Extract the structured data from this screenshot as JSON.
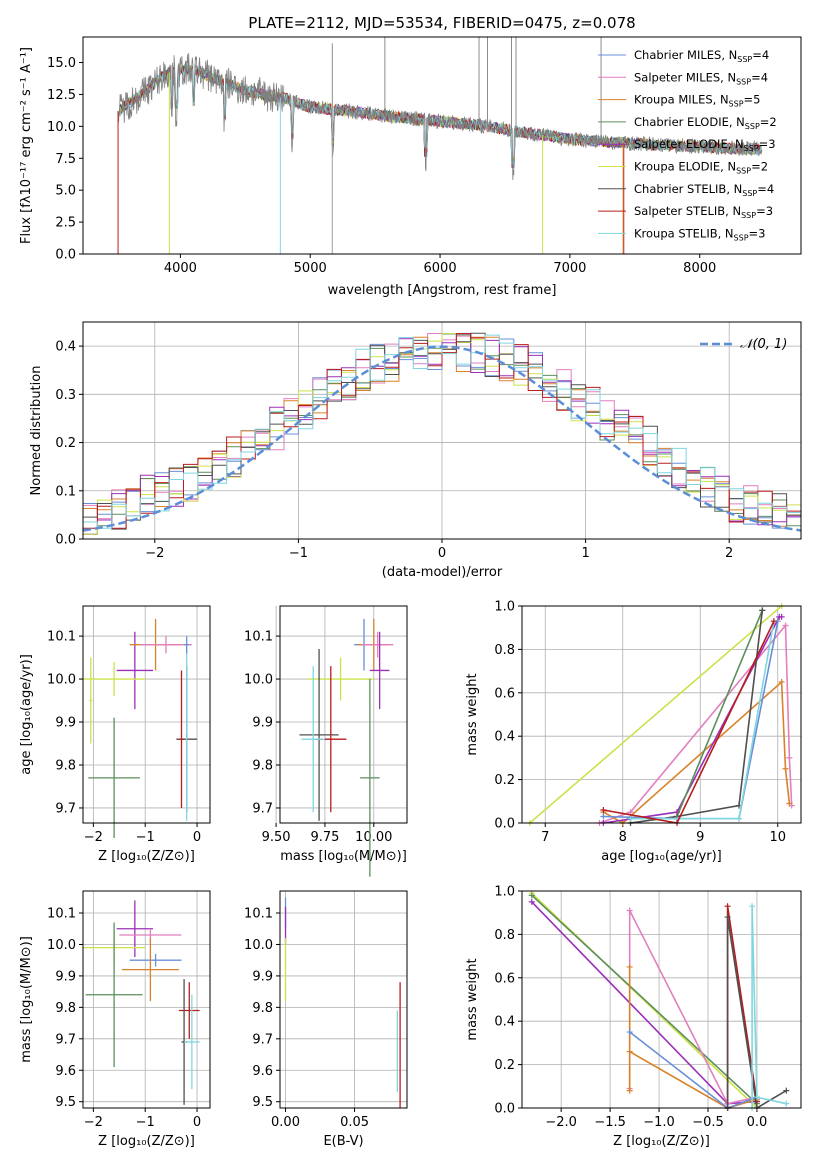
{
  "figure_title": "PLATE=2112, MJD=53534, FIBERID=0475, z=0.078",
  "colors": {
    "chabrier_miles": "#6a8fd9",
    "salpeter_miles": "#e27fbf",
    "kroupa_miles": "#d9822b",
    "chabrier_elodie": "#5c8f5c",
    "salpeter_elodie": "#9b30b8",
    "kroupa_elodie": "#cde24a",
    "chabrier_stelib": "#505050",
    "salpeter_stelib": "#b81d1d",
    "kroupa_stelib": "#7fd6df",
    "data": "#808080",
    "normal": "#5b8ed6"
  },
  "chart_data": [
    {
      "id": "spectrum",
      "type": "line",
      "title": "PLATE=2112, MJD=53534, FIBERID=0475, z=0.078",
      "xlabel": "wavelength [Angstrom, rest frame]",
      "ylabel": "Flux [fλ10⁻¹⁷ erg cm⁻² s⁻¹ A⁻¹]",
      "xlim": [
        3250,
        8780
      ],
      "ylim": [
        0,
        17
      ],
      "xticks": [
        "4000",
        "5000",
        "6000",
        "7000",
        "8000"
      ],
      "yticks": [
        "0.0",
        "2.5",
        "5.0",
        "7.5",
        "10.0",
        "12.5",
        "15.0"
      ],
      "legend_position": "upper right",
      "continuum": {
        "x": [
          3520,
          3700,
          3900,
          4100,
          4300,
          4500,
          4800,
          5000,
          5300,
          5600,
          6000,
          6300,
          6600,
          7000,
          7400,
          7800,
          8200,
          8500
        ],
        "y": [
          11.2,
          12.5,
          14.2,
          14.5,
          13.6,
          12.8,
          12.2,
          11.5,
          11.2,
          10.8,
          10.4,
          10.1,
          9.6,
          9.0,
          8.7,
          8.5,
          8.3,
          8.2
        ]
      },
      "series": [
        {
          "name": "Chabrier MILES, N_SSP=4"
        },
        {
          "name": "Salpeter MILES, N_SSP=4"
        },
        {
          "name": "Kroupa MILES, N_SSP=5"
        },
        {
          "name": "Chabrier ELODIE, N_SSP=2"
        },
        {
          "name": "Salpeter ELODIE, N_SSP=3"
        },
        {
          "name": "Kroupa ELODIE, N_SSP=2"
        },
        {
          "name": "Chabrier STELIB, N_SSP=4"
        },
        {
          "name": "Salpeter STELIB, N_SSP=3"
        },
        {
          "name": "Kroupa STELIB, N_SSP=3"
        }
      ],
      "legend": [
        {
          "label": "Chabrier MILES, N",
          "sub": "SSP",
          "suffix": "=4"
        },
        {
          "label": "Salpeter MILES, N",
          "sub": "SSP",
          "suffix": "=4"
        },
        {
          "label": "Kroupa MILES, N",
          "sub": "SSP",
          "suffix": "=5"
        },
        {
          "label": "Chabrier ELODIE, N",
          "sub": "SSP",
          "suffix": "=2"
        },
        {
          "label": "Salpeter ELODIE, N",
          "sub": "SSP",
          "suffix": "=3"
        },
        {
          "label": "Kroupa ELODIE, N",
          "sub": "SSP",
          "suffix": "=2"
        },
        {
          "label": "Chabrier STELIB, N",
          "sub": "SSP",
          "suffix": "=4"
        },
        {
          "label": "Salpeter STELIB, N",
          "sub": "SSP",
          "suffix": "=3"
        },
        {
          "label": "Kroupa STELIB, N",
          "sub": "SSP",
          "suffix": "=3"
        }
      ]
    },
    {
      "id": "residuals",
      "type": "bar",
      "xlabel": "(data-model)/error",
      "ylabel": "Normed distribution",
      "xlim": [
        -2.5,
        2.5
      ],
      "ylim": [
        0,
        0.45
      ],
      "xticks": [
        "−2",
        "−1",
        "0",
        "1",
        "2"
      ],
      "yticks": [
        "0.0",
        "0.1",
        "0.2",
        "0.3",
        "0.4"
      ],
      "legend": "𝒩(0, 1)",
      "bin_width": 0.1,
      "reference_values": [
        0.04,
        0.05,
        0.06,
        0.07,
        0.09,
        0.1,
        0.11,
        0.12,
        0.14,
        0.15,
        0.17,
        0.19,
        0.21,
        0.23,
        0.25,
        0.27,
        0.29,
        0.31,
        0.33,
        0.35,
        0.36,
        0.37,
        0.38,
        0.38,
        0.39,
        0.4,
        0.39,
        0.39,
        0.38,
        0.37,
        0.36,
        0.35,
        0.33,
        0.31,
        0.29,
        0.27,
        0.25,
        0.23,
        0.21,
        0.19,
        0.17,
        0.15,
        0.13,
        0.11,
        0.1,
        0.08,
        0.07,
        0.06,
        0.05,
        0.04
      ],
      "series_names": [
        "Chabrier MILES",
        "Salpeter MILES",
        "Kroupa MILES",
        "Chabrier ELODIE",
        "Salpeter ELODIE",
        "Kroupa ELODIE",
        "Chabrier STELIB",
        "Salpeter STELIB",
        "Kroupa STELIB"
      ]
    },
    {
      "id": "age_vs_Z",
      "type": "scatter",
      "xlabel": "Z [log₁₀(Z/Z⊙)]",
      "ylabel": "age  [log₁₀(age/yr)]",
      "xlim": [
        -2.2,
        0.25
      ],
      "ylim": [
        9.665,
        10.17
      ],
      "xticks": [
        "−2",
        "−1",
        "0"
      ],
      "xtickvals": [
        -2,
        -1,
        0
      ],
      "yticks": [
        "9.7",
        "9.8",
        "9.9",
        "10.0",
        "10.1"
      ],
      "ytickvals": [
        9.7,
        9.8,
        9.9,
        10.0,
        10.1
      ],
      "points": [
        {
          "s": "salpeter_elodie",
          "x": -1.2,
          "y": 10.02,
          "ex": 0.35,
          "ey": 0.09
        },
        {
          "s": "kroupa_miles",
          "x": -0.8,
          "y": 10.08,
          "ex": 0.5,
          "ey": 0.06
        },
        {
          "s": "salpeter_miles",
          "x": -0.6,
          "y": 10.08,
          "ex": 0.5,
          "ey": 0.02
        },
        {
          "s": "kroupa_elodie",
          "x": -1.6,
          "y": 10.0,
          "ex": 0.6,
          "ey": 0.04
        },
        {
          "s": "kroupa_elodie",
          "x": -2.05,
          "y": 9.95,
          "ex": 0.03,
          "ey": 0.1
        },
        {
          "s": "chabrier_elodie",
          "x": -1.6,
          "y": 9.77,
          "ex": 0.5,
          "ey": 0.14
        },
        {
          "s": "chabrier_stelib",
          "x": -0.2,
          "y": 9.86,
          "ex": 0.2,
          "ey": 0.17
        },
        {
          "s": "salpeter_stelib",
          "x": -0.3,
          "y": 9.86,
          "ex": 0.05,
          "ey": 0.16
        },
        {
          "s": "kroupa_stelib",
          "x": -0.2,
          "y": 9.87,
          "ex": 0.02,
          "ey": 0.2
        },
        {
          "s": "chabrier_miles",
          "x": -0.2,
          "y": 10.08,
          "ex": 0.05,
          "ey": 0.02
        }
      ]
    },
    {
      "id": "age_vs_mass",
      "type": "scatter",
      "xlabel": "mass [log₁₀(M/M⊙)]",
      "ylabel": "",
      "xlim": [
        9.52,
        10.17
      ],
      "ylim": [
        9.665,
        10.17
      ],
      "xticks": [
        "9.50",
        "9.75",
        "10.00"
      ],
      "xtickvals": [
        9.5,
        9.75,
        10.0
      ],
      "yticks": [
        "9.7",
        "9.8",
        "9.9",
        "10.0",
        "10.1"
      ],
      "ytickvals": [
        9.7,
        9.8,
        9.9,
        10.0,
        10.1
      ],
      "points": [
        {
          "s": "chabrier_miles",
          "x": 9.95,
          "y": 10.08,
          "ex": 0.05,
          "ey": 0.06
        },
        {
          "s": "kroupa_miles",
          "x": 10.0,
          "y": 10.08,
          "ex": 0.08,
          "ey": 0.06
        },
        {
          "s": "salpeter_miles",
          "x": 10.02,
          "y": 10.08,
          "ex": 0.08,
          "ey": 0.03
        },
        {
          "s": "salpeter_elodie",
          "x": 10.03,
          "y": 10.02,
          "ex": 0.05,
          "ey": 0.09
        },
        {
          "s": "kroupa_elodie",
          "x": 9.83,
          "y": 10.0,
          "ex": 0.17,
          "ey": 0.05
        },
        {
          "s": "chabrier_elodie",
          "x": 9.98,
          "y": 9.77,
          "ex": 0.05,
          "ey": 0.23
        },
        {
          "s": "chabrier_stelib",
          "x": 9.72,
          "y": 9.87,
          "ex": 0.1,
          "ey": 0.2
        },
        {
          "s": "salpeter_stelib",
          "x": 9.78,
          "y": 9.86,
          "ex": 0.08,
          "ey": 0.17
        },
        {
          "s": "kroupa_stelib",
          "x": 9.69,
          "y": 9.86,
          "ex": 0.06,
          "ey": 0.17
        }
      ]
    },
    {
      "id": "weight_vs_age",
      "type": "line",
      "xlabel": "age  [log₁₀(age/yr)]",
      "ylabel": "mass weight",
      "xlim": [
        6.7,
        10.3
      ],
      "ylim": [
        0,
        1
      ],
      "xticks": [
        "7",
        "8",
        "9",
        "10"
      ],
      "xtickvals": [
        7,
        8,
        9,
        10
      ],
      "yticks": [
        "0.0",
        "0.2",
        "0.4",
        "0.6",
        "0.8",
        "1.0"
      ],
      "ytickvals": [
        0,
        0.2,
        0.4,
        0.6,
        0.8,
        1.0
      ],
      "series": [
        {
          "s": "kroupa_elodie",
          "x": [
            6.8,
            10.05
          ],
          "y": [
            0.0,
            1.0
          ]
        },
        {
          "s": "salpeter_miles",
          "x": [
            7.7,
            8.1,
            10.1,
            10.15,
            10.18
          ],
          "y": [
            0.0,
            0.05,
            0.91,
            0.3,
            0.08
          ]
        },
        {
          "s": "kroupa_miles",
          "x": [
            7.75,
            8.0,
            10.05,
            10.1,
            10.15
          ],
          "y": [
            0.05,
            0.0,
            0.65,
            0.25,
            0.09
          ]
        },
        {
          "s": "salpeter_elodie",
          "x": [
            7.75,
            8.7,
            10.02,
            10.05
          ],
          "y": [
            0.0,
            0.05,
            0.95,
            0.95
          ]
        },
        {
          "s": "chabrier_elodie",
          "x": [
            8.1,
            8.7,
            9.8
          ],
          "y": [
            0.0,
            0.03,
            0.98
          ]
        },
        {
          "s": "chabrier_stelib",
          "x": [
            8.1,
            8.7,
            9.5,
            9.8
          ],
          "y": [
            0.0,
            0.03,
            0.08,
            0.98
          ]
        },
        {
          "s": "chabrier_miles",
          "x": [
            7.75,
            8.7,
            9.5,
            10.0
          ],
          "y": [
            0.03,
            0.02,
            0.02,
            0.93
          ]
        },
        {
          "s": "kroupa_stelib",
          "x": [
            8.1,
            9.5,
            9.95
          ],
          "y": [
            0.02,
            0.02,
            0.93
          ]
        },
        {
          "s": "salpeter_stelib",
          "x": [
            7.75,
            8.7,
            9.95
          ],
          "y": [
            0.06,
            0.0,
            0.93
          ]
        }
      ]
    },
    {
      "id": "mass_vs_Z",
      "type": "scatter",
      "xlabel": "Z [log₁₀(Z/Z⊙)]",
      "ylabel": "mass [log₁₀(M/M⊙)]",
      "xlim": [
        -2.2,
        0.25
      ],
      "ylim": [
        9.48,
        10.17
      ],
      "xticks": [
        "−2",
        "−1",
        "0"
      ],
      "xtickvals": [
        -2,
        -1,
        0
      ],
      "yticks": [
        "9.5",
        "9.6",
        "9.7",
        "9.8",
        "9.9",
        "10.0",
        "10.1"
      ],
      "ytickvals": [
        9.5,
        9.6,
        9.7,
        9.8,
        9.9,
        10.0,
        10.1
      ],
      "points": [
        {
          "s": "salpeter_elodie",
          "x": -1.2,
          "y": 10.05,
          "ex": 0.35,
          "ey": 0.09
        },
        {
          "s": "salpeter_miles",
          "x": -0.9,
          "y": 10.03,
          "ex": 0.6,
          "ey": 0.02
        },
        {
          "s": "kroupa_elodie",
          "x": -1.6,
          "y": 9.99,
          "ex": 0.6,
          "ey": 0.05
        },
        {
          "s": "chabrier_miles",
          "x": -0.8,
          "y": 9.95,
          "ex": 0.5,
          "ey": 0.02
        },
        {
          "s": "kroupa_miles",
          "x": -0.9,
          "y": 9.92,
          "ex": 0.55,
          "ey": 0.1
        },
        {
          "s": "chabrier_elodie",
          "x": -1.6,
          "y": 9.84,
          "ex": 0.55,
          "ey": 0.23
        },
        {
          "s": "salpeter_stelib",
          "x": -0.15,
          "y": 9.79,
          "ex": 0.2,
          "ey": 0.09
        },
        {
          "s": "chabrier_stelib",
          "x": -0.25,
          "y": 9.69,
          "ex": 0.05,
          "ey": 0.2
        },
        {
          "s": "kroupa_stelib",
          "x": -0.1,
          "y": 9.69,
          "ex": 0.15,
          "ey": 0.15
        }
      ]
    },
    {
      "id": "mass_vs_ebv",
      "type": "scatter",
      "xlabel": "E(B-V)",
      "ylabel": "",
      "xlim": [
        -0.004,
        0.088
      ],
      "ylim": [
        9.48,
        10.17
      ],
      "xticks": [
        "0.00",
        "0.05"
      ],
      "xtickvals": [
        0,
        0.05
      ],
      "yticks": [
        "9.5",
        "9.6",
        "9.7",
        "9.8",
        "9.9",
        "10.0",
        "10.1"
      ],
      "ytickvals": [
        9.5,
        9.6,
        9.7,
        9.8,
        9.9,
        10.0,
        10.1
      ],
      "points": [
        {
          "s": "chabrier_miles",
          "x": 0.0,
          "y": 10.1,
          "ex": 0.0,
          "ey": 0.05
        },
        {
          "s": "salpeter_elodie",
          "x": 0.0,
          "y": 10.06,
          "ex": 0.0,
          "ey": 0.06
        },
        {
          "s": "kroupa_elodie",
          "x": 0.0,
          "y": 9.92,
          "ex": 0.0,
          "ey": 0.1
        },
        {
          "s": "salpeter_stelib",
          "x": 0.083,
          "y": 9.68,
          "ex": 0.0,
          "ey": 0.2
        },
        {
          "s": "kroupa_stelib",
          "x": 0.081,
          "y": 9.66,
          "ex": 0.0,
          "ey": 0.13
        }
      ]
    },
    {
      "id": "weight_vs_Z",
      "type": "line",
      "xlabel": "Z [log₁₀(Z/Z⊙)]",
      "ylabel": "mass weight",
      "xlim": [
        -2.4,
        0.45
      ],
      "ylim": [
        0,
        1
      ],
      "xticks": [
        "−2.0",
        "−1.5",
        "−1.0",
        "−0.5",
        "0.0"
      ],
      "xtickvals": [
        -2,
        -1.5,
        -1,
        -0.5,
        0
      ],
      "yticks": [
        "0.0",
        "0.2",
        "0.4",
        "0.6",
        "0.8",
        "1.0"
      ],
      "ytickvals": [
        0,
        0.2,
        0.4,
        0.6,
        0.8,
        1.0
      ],
      "series": [
        {
          "s": "kroupa_elodie",
          "x": [
            -2.3,
            0.0
          ],
          "y": [
            0.99,
            0.0
          ]
        },
        {
          "s": "chabrier_elodie",
          "x": [
            -2.3,
            0.0
          ],
          "y": [
            0.98,
            0.02
          ]
        },
        {
          "s": "salpeter_elodie",
          "x": [
            -2.3,
            -0.3,
            0.0
          ],
          "y": [
            0.95,
            0.02,
            0.03
          ]
        },
        {
          "s": "salpeter_miles",
          "x": [
            -1.3,
            -1.3,
            -0.3,
            0.0
          ],
          "y": [
            0.09,
            0.91,
            0.02,
            0.05
          ]
        },
        {
          "s": "kroupa_miles",
          "x": [
            -1.3,
            -1.3,
            -1.3,
            -0.3,
            0.0
          ],
          "y": [
            0.08,
            0.65,
            0.26,
            0.0,
            0.04
          ]
        },
        {
          "s": "chabrier_miles",
          "x": [
            -1.3,
            -0.3,
            0.0
          ],
          "y": [
            0.35,
            0.0,
            0.05
          ]
        },
        {
          "s": "salpeter_stelib",
          "x": [
            -0.3,
            -0.3,
            0.0
          ],
          "y": [
            0.0,
            0.93,
            0.03
          ]
        },
        {
          "s": "chabrier_stelib",
          "x": [
            -0.3,
            -0.3,
            0.0,
            0.3
          ],
          "y": [
            0.0,
            0.88,
            0.0,
            0.08
          ]
        },
        {
          "s": "kroupa_stelib",
          "x": [
            -0.05,
            -0.05,
            0.0,
            0.3
          ],
          "y": [
            0.0,
            0.93,
            0.05,
            0.02
          ]
        }
      ]
    }
  ]
}
